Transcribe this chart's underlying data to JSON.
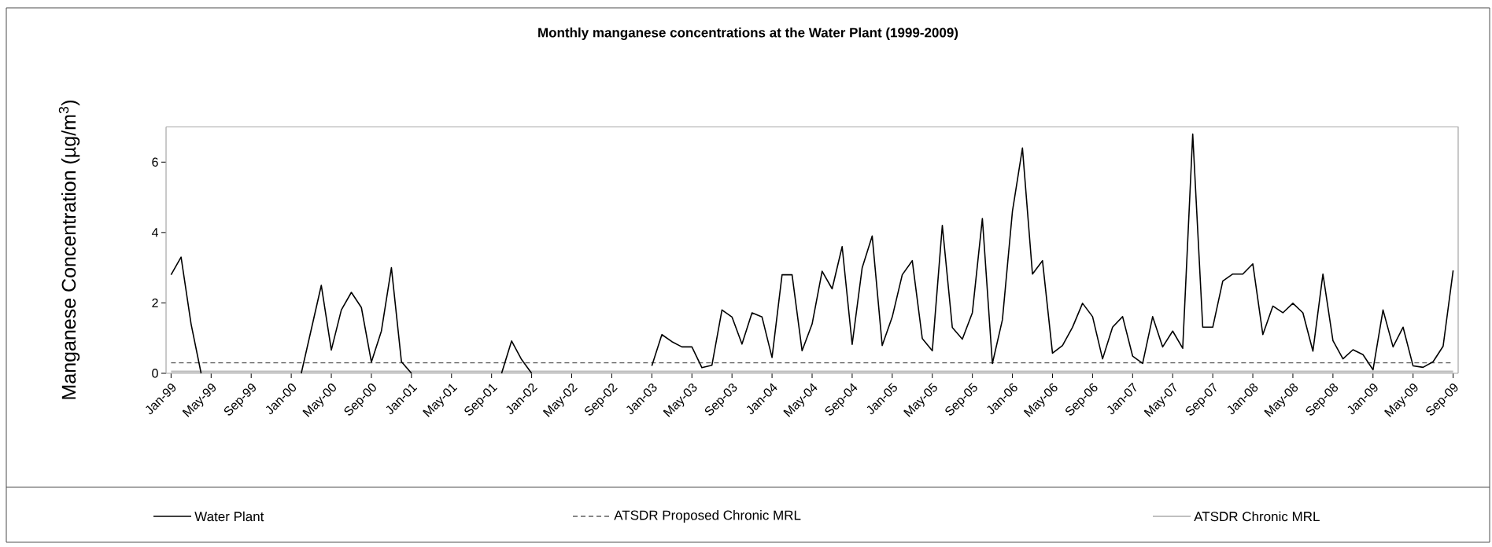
{
  "chart_data": {
    "type": "line",
    "title": "Monthly manganese concentrations at the Water Plant (1999-2009)",
    "ylabel": "Manganese Concentration (µg/m$^{3}$)",
    "categories": [
      "Jan-99",
      null,
      null,
      null,
      "May-99",
      null,
      null,
      null,
      "Sep-99",
      null,
      null,
      null,
      "Jan-00",
      null,
      null,
      null,
      "May-00",
      null,
      null,
      null,
      "Sep-00",
      null,
      null,
      null,
      "Jan-01",
      null,
      null,
      null,
      "May-01",
      null,
      null,
      null,
      "Sep-01",
      null,
      null,
      null,
      "Jan-02",
      null,
      null,
      null,
      "May-02",
      null,
      null,
      null,
      "Sep-02",
      null,
      null,
      null,
      "Jan-03",
      null,
      null,
      null,
      "May-03",
      null,
      null,
      null,
      "Sep-03",
      null,
      null,
      null,
      "Jan-04",
      null,
      null,
      null,
      "May-04",
      null,
      null,
      null,
      "Sep-04",
      null,
      null,
      null,
      "Jan-05",
      null,
      null,
      null,
      "May-05",
      null,
      null,
      null,
      "Sep-05",
      null,
      null,
      null,
      "Jan-06",
      null,
      null,
      null,
      "May-06",
      null,
      null,
      null,
      "Sep-06",
      null,
      null,
      null,
      "Jan-07",
      null,
      null,
      null,
      "May-07",
      null,
      null,
      null,
      "Sep-07",
      null,
      null,
      null,
      "Jan-08",
      null,
      null,
      null,
      "May-08",
      null,
      null,
      null,
      "Sep-08",
      null,
      null,
      null,
      "Jan-09",
      null,
      null,
      null,
      "May-09",
      null,
      null,
      null,
      "Sep-09"
    ],
    "series": [
      {
        "name": "Water Plant",
        "color": "#000000",
        "values": [
          2.8,
          3.3,
          1.4,
          0,
          null,
          null,
          null,
          null,
          null,
          null,
          null,
          null,
          null,
          0,
          1.25,
          2.5,
          0.66,
          1.8,
          2.3,
          1.87,
          0.32,
          1.2,
          3.0,
          0.33,
          0,
          null,
          null,
          null,
          null,
          null,
          null,
          null,
          null,
          0,
          0.92,
          0.39,
          0,
          null,
          null,
          null,
          null,
          null,
          null,
          null,
          null,
          null,
          null,
          null,
          0.21,
          1.1,
          0.9,
          0.75,
          0.75,
          0.16,
          0.23,
          1.8,
          1.6,
          0.83,
          1.72,
          1.6,
          0.45,
          2.8,
          2.8,
          0.64,
          1.4,
          2.9,
          2.4,
          3.6,
          0.82,
          3.0,
          3.9,
          0.79,
          1.6,
          2.8,
          3.2,
          0.99,
          0.64,
          4.2,
          1.3,
          0.97,
          1.72,
          4.4,
          0.28,
          1.52,
          4.6,
          6.4,
          2.82,
          3.2,
          0.57,
          0.79,
          1.31,
          1.99,
          1.61,
          0.41,
          1.31,
          1.61,
          0.49,
          0.28,
          1.61,
          0.75,
          1.2,
          0.71,
          6.8,
          1.31,
          1.31,
          2.62,
          2.82,
          2.82,
          3.11,
          1.1,
          1.91,
          1.72,
          1.99,
          1.72,
          0.63,
          2.82,
          0.93,
          0.41,
          0.67,
          0.53,
          0.1,
          1.8,
          0.75,
          1.31,
          0.21,
          0.17,
          0.33,
          0.77,
          2.92
        ]
      }
    ],
    "ref_lines": [
      {
        "axis": "y",
        "value": 0.3,
        "label": "ATSDR Proposed Chronic MRL",
        "color": "#606060",
        "line_style": "dashed"
      },
      {
        "axis": "y",
        "value": 0.05,
        "label": "ATSDR Chronic MRL",
        "color": "#c0c0c0",
        "line_style": "solid"
      }
    ],
    "ylim": [
      0,
      7
    ],
    "yticks": [
      0,
      2,
      4,
      6
    ],
    "grid": false,
    "legend": "bottom"
  }
}
